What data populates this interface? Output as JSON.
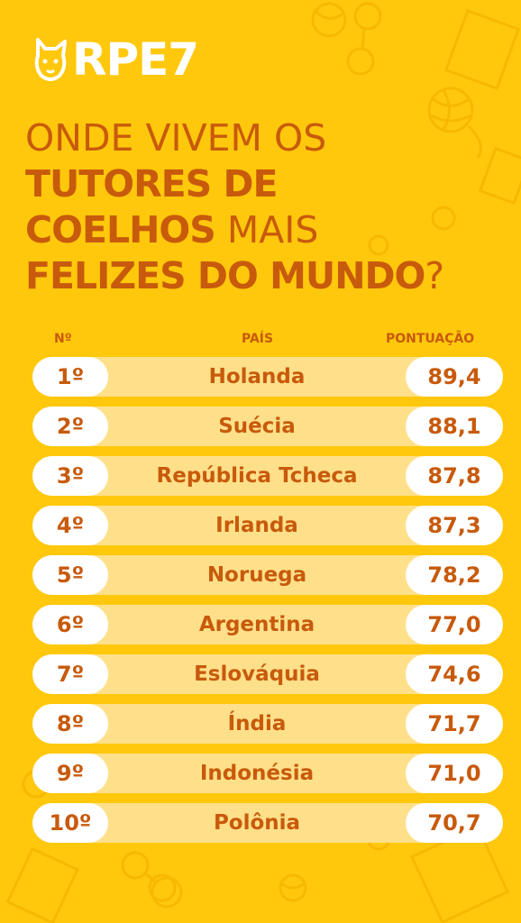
{
  "brand": {
    "name": "RPE7",
    "logo_icon": "dog-head-icon"
  },
  "headline": {
    "line1": "ONDE VIVEM OS",
    "line2": "TUTORES DE",
    "line3_bold": "COELHOS",
    "line3_thin": " MAIS",
    "line4_bold": "FELIZES DO MUNDO",
    "line4_thin": "?"
  },
  "columns": {
    "rank": "Nº",
    "country": "PAÍS",
    "score": "PONTUAÇÃO"
  },
  "rankings": [
    {
      "rank": "1º",
      "country": "Holanda",
      "score": "89,4"
    },
    {
      "rank": "2º",
      "country": "Suécia",
      "score": "88,1"
    },
    {
      "rank": "3º",
      "country": "República Tcheca",
      "score": "87,8"
    },
    {
      "rank": "4º",
      "country": "Irlanda",
      "score": "87,3"
    },
    {
      "rank": "5º",
      "country": "Noruega",
      "score": "78,2"
    },
    {
      "rank": "6º",
      "country": "Argentina",
      "score": "77,0"
    },
    {
      "rank": "7º",
      "country": "Eslováquia",
      "score": "74,6"
    },
    {
      "rank": "8º",
      "country": "Índia",
      "score": "71,7"
    },
    {
      "rank": "9º",
      "country": "Indonésia",
      "score": "71,0"
    },
    {
      "rank": "10º",
      "country": "Polônia",
      "score": "70,7"
    }
  ],
  "colors": {
    "background": "#FFC80C",
    "text": "#C85A0C",
    "row_band": "#FFE08A",
    "pill": "#FFFFFF"
  }
}
